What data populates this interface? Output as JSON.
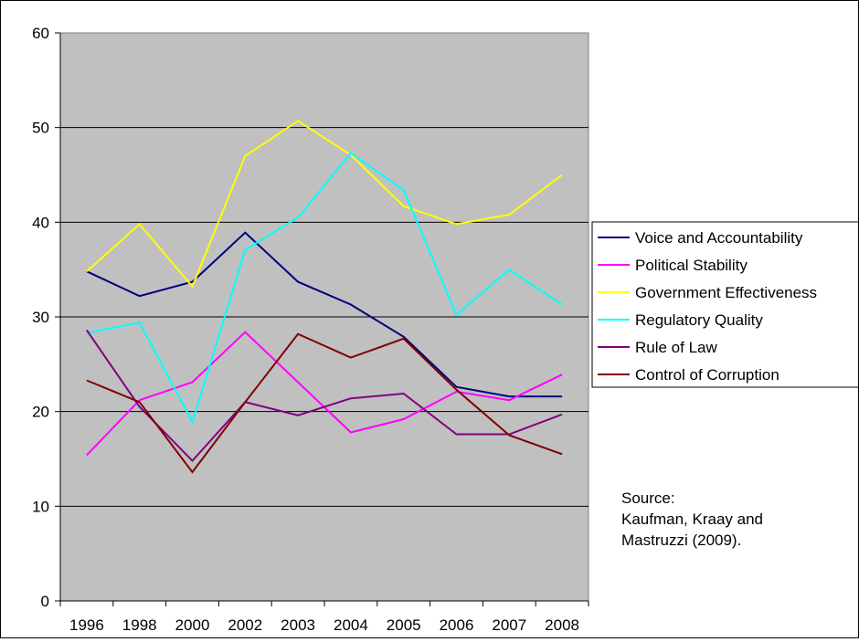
{
  "chart_data": {
    "type": "line",
    "title": "",
    "xlabel": "",
    "ylabel": "",
    "categories": [
      "1996",
      "1998",
      "2000",
      "2002",
      "2003",
      "2004",
      "2005",
      "2006",
      "2007",
      "2008"
    ],
    "ylim": [
      0,
      60
    ],
    "yticks": [
      "0",
      "10",
      "20",
      "30",
      "40",
      "50",
      "60"
    ],
    "grid": true,
    "plot_background": "#c0c0c0",
    "legend_position": "right",
    "series": [
      {
        "name": "Voice and Accountability",
        "color": "#000080",
        "values": [
          34.8,
          32.2,
          33.7,
          38.9,
          33.7,
          31.3,
          27.9,
          22.6,
          21.6,
          21.6
        ]
      },
      {
        "name": "Political Stability",
        "color": "#ff00ff",
        "values": [
          15.4,
          21.2,
          23.1,
          28.4,
          23.1,
          17.8,
          19.2,
          22.1,
          21.2,
          23.9
        ]
      },
      {
        "name": "Government Effectiveness",
        "color": "#ffff00",
        "values": [
          34.8,
          39.8,
          33.2,
          47.0,
          50.7,
          47.1,
          41.7,
          39.8,
          40.8,
          45.0
        ]
      },
      {
        "name": "Regulatory Quality",
        "color": "#00ffff",
        "values": [
          28.3,
          29.4,
          18.9,
          37.1,
          40.5,
          47.3,
          43.4,
          30.2,
          35.0,
          31.3
        ]
      },
      {
        "name": "Rule of Law",
        "color": "#800080",
        "values": [
          28.6,
          20.5,
          14.8,
          21.0,
          19.6,
          21.4,
          21.9,
          17.6,
          17.6,
          19.7
        ]
      },
      {
        "name": "Control of Corruption",
        "color": "#800000",
        "values": [
          23.3,
          21.0,
          13.6,
          21.0,
          28.2,
          25.7,
          27.7,
          22.3,
          17.5,
          15.5
        ]
      }
    ],
    "annotation": {
      "lines": [
        "Source:",
        "Kaufman, Kraay and",
        "Mastruzzi (2009)."
      ]
    }
  }
}
